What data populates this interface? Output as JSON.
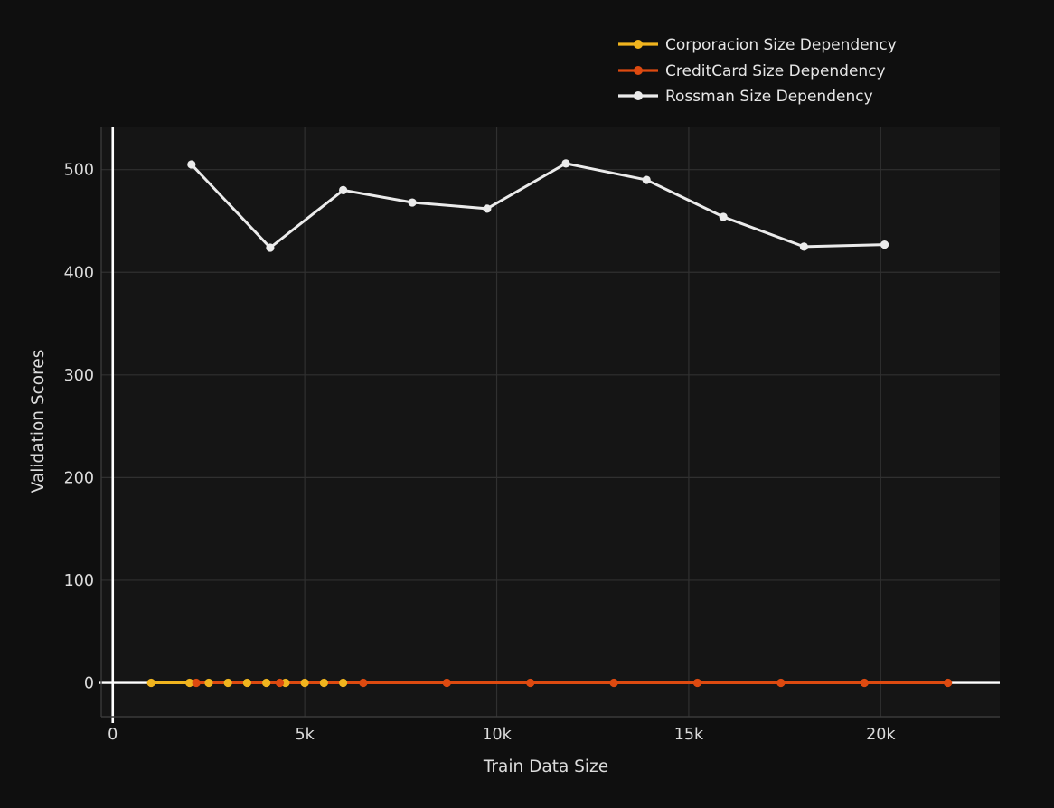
{
  "chart_data": {
    "type": "line",
    "title": "",
    "xlabel": "Train Data Size",
    "ylabel": "Validation Scores",
    "xlim": [
      -300,
      23100
    ],
    "ylim": [
      -33,
      542
    ],
    "grid": true,
    "zero_lines": "white emphasized zero lines on both axes",
    "legend_position": "top, above plot area, left-aligned swatches",
    "x_ticks": [
      {
        "value": 0,
        "label": "0"
      },
      {
        "value": 5000,
        "label": "5k"
      },
      {
        "value": 10000,
        "label": "10k"
      },
      {
        "value": 15000,
        "label": "15k"
      },
      {
        "value": 20000,
        "label": "20k"
      }
    ],
    "y_ticks": [
      {
        "value": 0,
        "label": "0"
      },
      {
        "value": 100,
        "label": "100"
      },
      {
        "value": 200,
        "label": "200"
      },
      {
        "value": 300,
        "label": "300"
      },
      {
        "value": 400,
        "label": "400"
      },
      {
        "value": 500,
        "label": "500"
      }
    ],
    "series": [
      {
        "name": "Corporacion Size Dependency",
        "color": "#f0b41e",
        "x": [
          1000,
          2000,
          2500,
          3000,
          3500,
          4000,
          4500,
          5000,
          5500,
          6000
        ],
        "y": [
          0,
          0,
          0,
          0,
          0,
          0,
          0,
          0,
          0,
          0
        ]
      },
      {
        "name": "CreditCard Size Dependency",
        "color": "#dd4a10",
        "x": [
          2175,
          4350,
          6525,
          8700,
          10875,
          13050,
          15225,
          17400,
          19575,
          21750
        ],
        "y": [
          0,
          0,
          0,
          0,
          0,
          0,
          0,
          0,
          0,
          0
        ]
      },
      {
        "name": "Rossman Size Dependency",
        "color": "#ebebeb",
        "x": [
          2050,
          4100,
          6000,
          7800,
          9750,
          11800,
          13900,
          15900,
          18000,
          20100
        ],
        "y": [
          505,
          424,
          480,
          468,
          462,
          506,
          490,
          454,
          425,
          427
        ]
      }
    ]
  },
  "colors": {
    "page_bg": "#0f0f0f",
    "plot_bg": "#151515",
    "grid": "#303030",
    "axis_border": "#3a3a3a",
    "zero_line": "#ffffff",
    "tick_label": "#dcdcdc",
    "axis_title": "#dcdcdc",
    "legend_text": "#e6e6e6"
  }
}
